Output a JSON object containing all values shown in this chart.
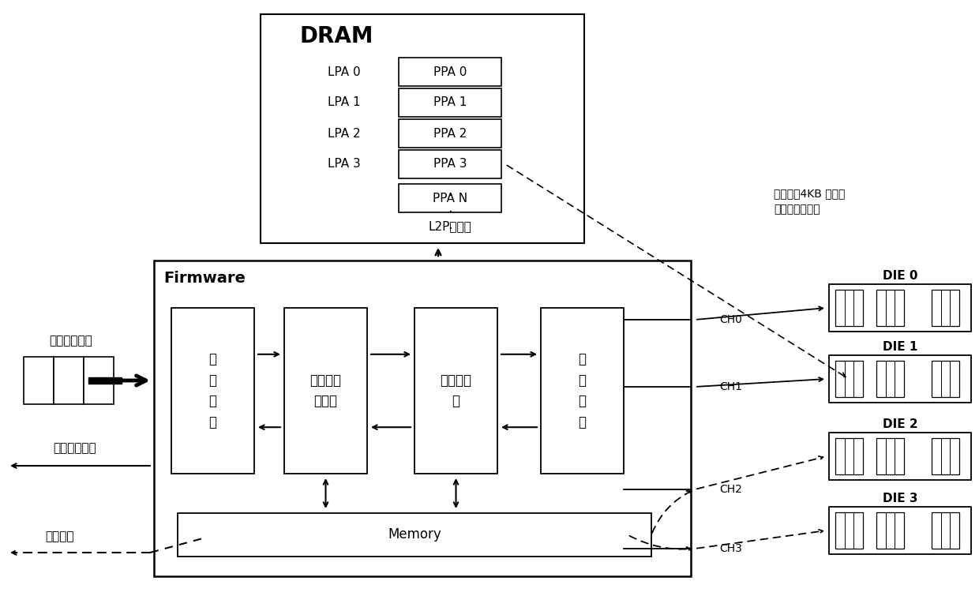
{
  "bg_color": "#ffffff",
  "dram_title": "DRAM",
  "firmware_title": "Firmware",
  "lpa_labels": [
    "LPA 0",
    "LPA 1",
    "LPA 2",
    "LPA 3"
  ],
  "ppa_labels": [
    "PPA 0",
    "PPA 1",
    "PPA 2",
    "PPA 3"
  ],
  "ppan_label": "PPA N",
  "l2p_label": "L2P映射表",
  "host_label": "主机读写请求",
  "data_ctrl_label": "数据传输控制",
  "data_trans_label": "数据传输",
  "annotation_line1": "指示对应4KB 数据所",
  "annotation_line2": "存储的物理地址",
  "module_front_lines": [
    "前",
    "端",
    "模",
    "块"
  ],
  "module_rw_lines": [
    "读写缓冲",
    "区管理"
  ],
  "module_map_lines": [
    "映射表管",
    "理"
  ],
  "module_back_lines": [
    "后",
    "端",
    "模",
    "块"
  ],
  "memory_label": "Memory",
  "die_labels": [
    "DIE 0",
    "DIE 1",
    "DIE 2",
    "DIE 3"
  ],
  "ch_labels": [
    "CH0",
    "CH1",
    "CH2",
    "CH3"
  ],
  "dots": "·\n·\n·"
}
